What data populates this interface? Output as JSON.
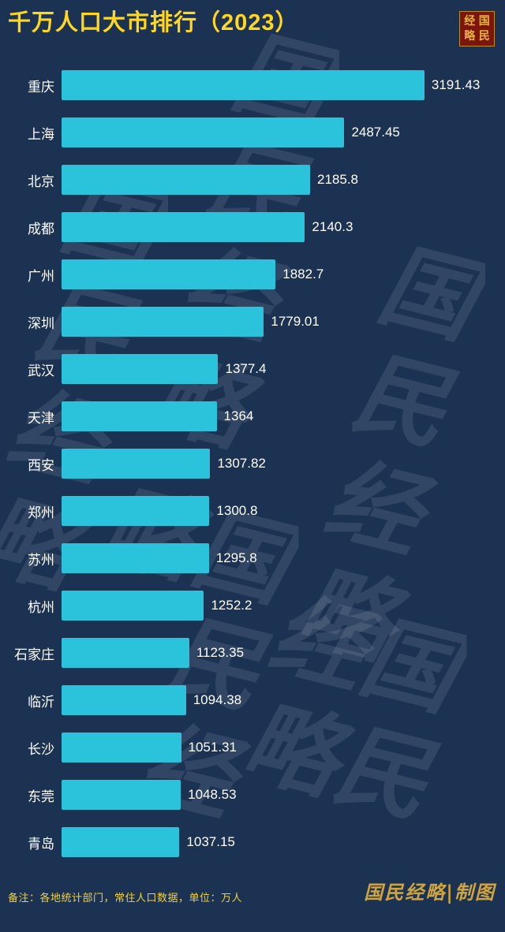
{
  "title": "千万人口大市排行（2023）",
  "seal": {
    "chars": [
      "经",
      "国",
      "略",
      "民"
    ]
  },
  "watermark": "国民经略",
  "chart_data": {
    "type": "bar",
    "orientation": "horizontal",
    "title": "千万人口大市排行（2023）",
    "categories": [
      "重庆",
      "上海",
      "北京",
      "成都",
      "广州",
      "深圳",
      "武汉",
      "天津",
      "西安",
      "郑州",
      "苏州",
      "杭州",
      "石家庄",
      "临沂",
      "长沙",
      "东莞",
      "青岛"
    ],
    "values": [
      3191.43,
      2487.45,
      2185.8,
      2140.3,
      1882.7,
      1779.01,
      1377.4,
      1364,
      1307.82,
      1300.8,
      1295.8,
      1252.2,
      1123.35,
      1094.38,
      1051.31,
      1048.53,
      1037.15
    ],
    "unit": "万人",
    "xlim": [
      0,
      3900
    ],
    "bar_color": "#2bc2dc",
    "background_color": "#1c3252",
    "value_labels": true,
    "legend": false,
    "grid": false
  },
  "footer": {
    "note": "备注：各地统计部门，常住人口数据，单位：万人",
    "credit": "国民经略|制图"
  }
}
